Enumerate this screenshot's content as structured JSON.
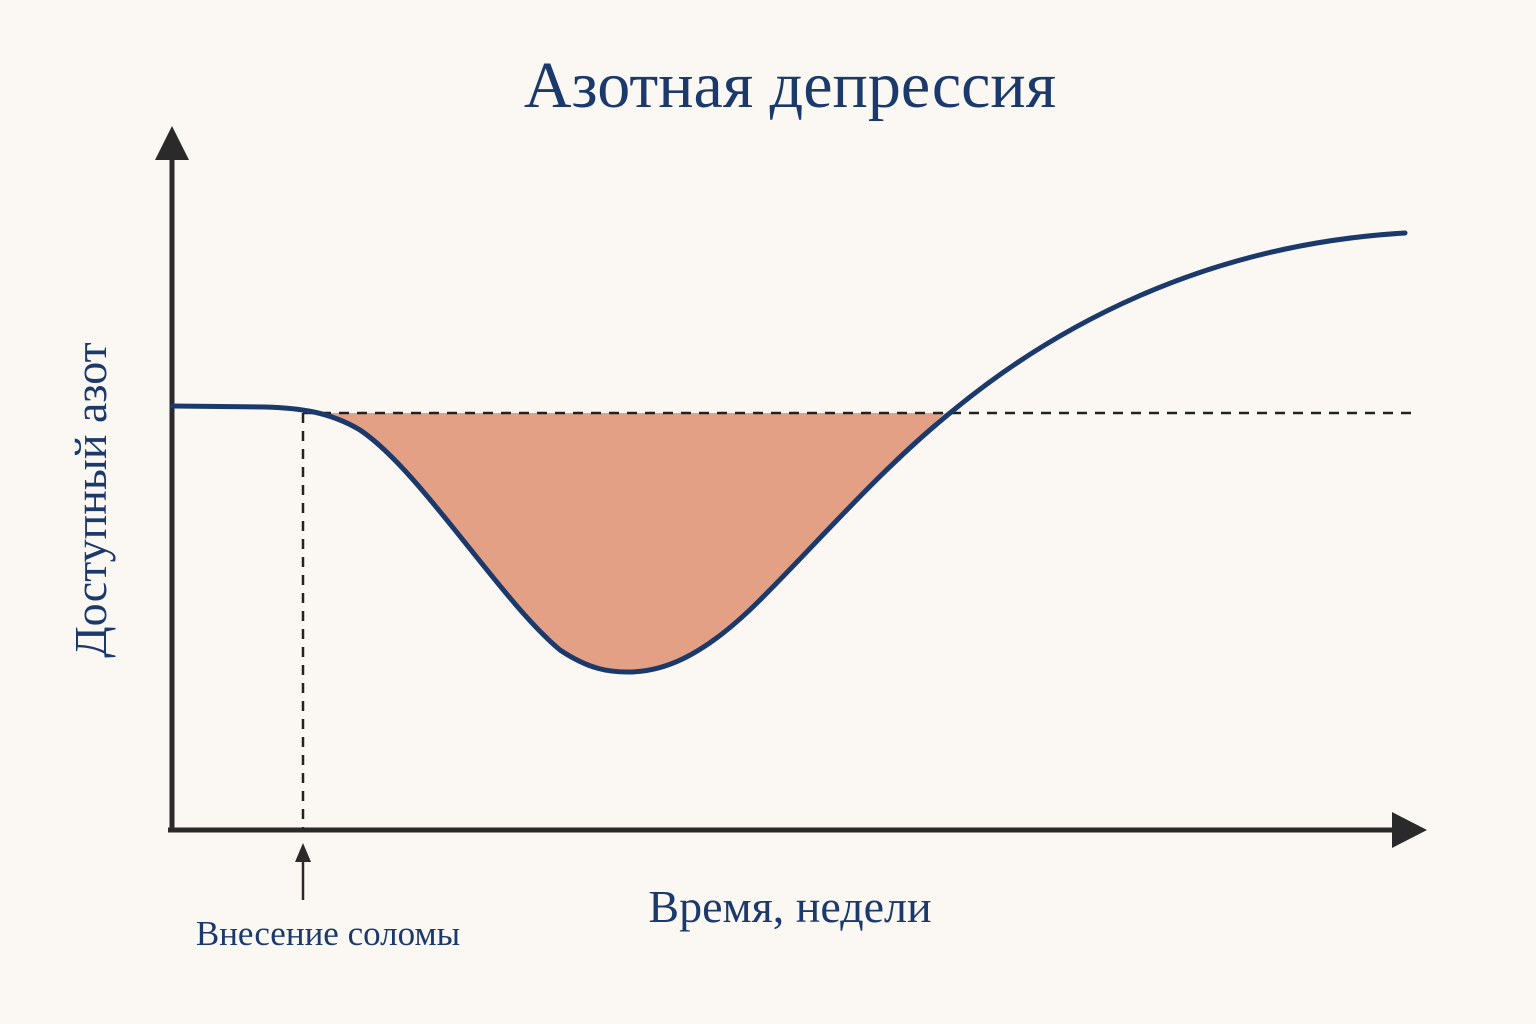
{
  "title": "Азотная депрессия",
  "y_axis_label": "Доступный азот",
  "x_axis_label": "Время, недели",
  "annotation": "Внесение соломы"
}
